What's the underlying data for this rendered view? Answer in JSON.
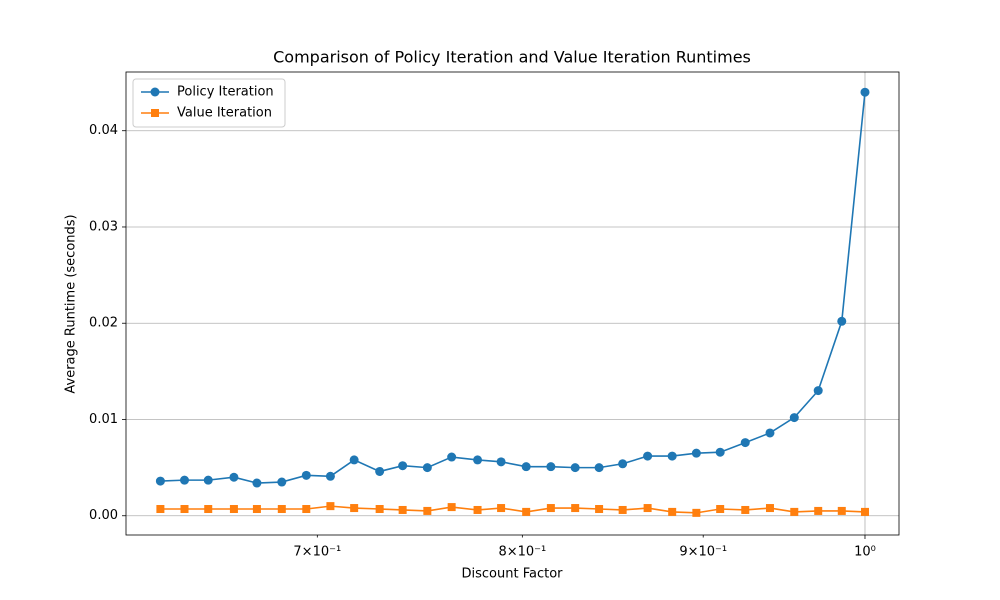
{
  "chart_data": {
    "type": "line",
    "title": "Comparison of Policy Iteration and Value Iteration Runtimes",
    "xlabel": "Discount Factor",
    "ylabel": "Average Runtime (seconds)",
    "x": [
      0.632,
      0.642,
      0.652,
      0.663,
      0.673,
      0.684,
      0.695,
      0.706,
      0.717,
      0.729,
      0.74,
      0.752,
      0.764,
      0.777,
      0.789,
      0.802,
      0.815,
      0.828,
      0.841,
      0.854,
      0.868,
      0.882,
      0.896,
      0.91,
      0.925,
      0.94,
      0.955,
      0.97,
      0.985,
      1.0
    ],
    "series": [
      {
        "name": "Policy Iteration",
        "color": "#1f77b4",
        "marker": "circle",
        "values": [
          0.0036,
          0.0037,
          0.0037,
          0.004,
          0.0034,
          0.0035,
          0.0042,
          0.0041,
          0.0058,
          0.0046,
          0.0052,
          0.005,
          0.0061,
          0.0058,
          0.0056,
          0.0051,
          0.0051,
          0.005,
          0.005,
          0.0054,
          0.0062,
          0.0062,
          0.0065,
          0.0066,
          0.0076,
          0.0086,
          0.0102,
          0.013,
          0.0202,
          0.044
        ]
      },
      {
        "name": "Value Iteration",
        "color": "#ff7f0e",
        "marker": "square",
        "values": [
          0.0007,
          0.0007,
          0.0007,
          0.0007,
          0.0007,
          0.0007,
          0.0007,
          0.001,
          0.0008,
          0.0007,
          0.0006,
          0.0005,
          0.0009,
          0.0006,
          0.0008,
          0.0004,
          0.0008,
          0.0008,
          0.0007,
          0.0006,
          0.0008,
          0.0004,
          0.0003,
          0.0007,
          0.0006,
          0.0008,
          0.0004,
          0.0005,
          0.0005,
          0.0004
        ]
      }
    ],
    "xscale": "log",
    "xlim": [
      0.618,
      1.0224
    ],
    "ylim": [
      -0.002,
      0.0461
    ],
    "xticks": [
      {
        "value": 1,
        "label": "10⁰"
      }
    ],
    "xminorticks": [
      {
        "value": 0.7,
        "label": "7×10⁻¹"
      },
      {
        "value": 0.8,
        "label": "8×10⁻¹"
      },
      {
        "value": 0.9,
        "label": "9×10⁻¹"
      }
    ],
    "yticks": [
      {
        "value": 0,
        "label": "0.00"
      },
      {
        "value": 0.01,
        "label": "0.01"
      },
      {
        "value": 0.02,
        "label": "0.02"
      },
      {
        "value": 0.03,
        "label": "0.03"
      },
      {
        "value": 0.04,
        "label": "0.04"
      }
    ],
    "grid": true,
    "legend": "upper left"
  }
}
